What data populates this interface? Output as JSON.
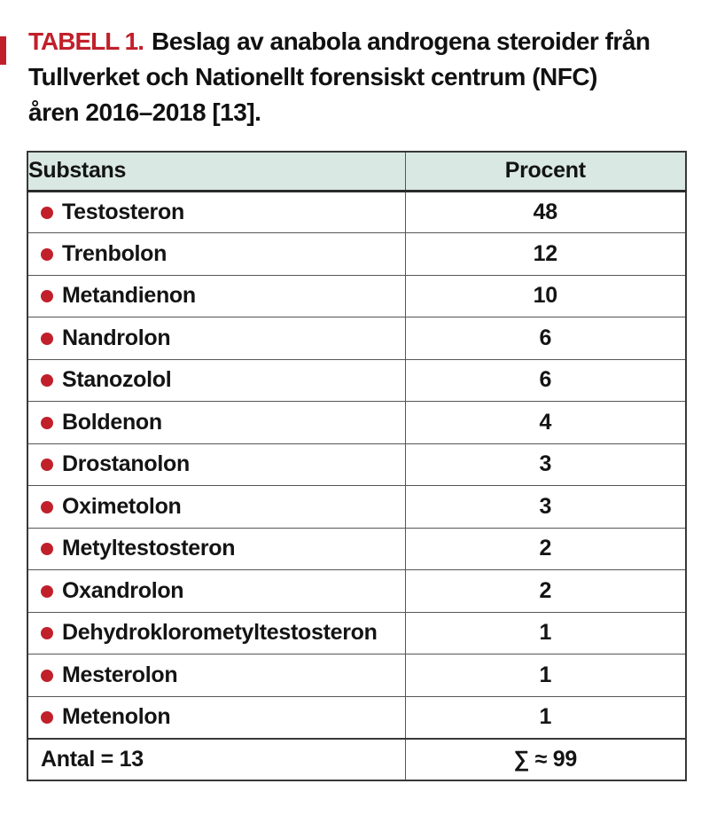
{
  "caption": {
    "label": "TABELL 1.",
    "lines": [
      "Beslag av anabola androgena steroider från",
      "Tullverket och Nationellt forensiskt centrum (NFC)",
      "åren 2016–2018 [13]."
    ],
    "full_text": "TABELL 1. Beslag av anabola androgena steroider från Tullverket och Nationellt forensiskt centrum (NFC) åren 2016–2018 [13]."
  },
  "table": {
    "columns": [
      "Substans",
      "Procent"
    ],
    "rows": [
      {
        "substans": "Testosteron",
        "procent": "48"
      },
      {
        "substans": "Trenbolon",
        "procent": "12"
      },
      {
        "substans": "Metandienon",
        "procent": "10"
      },
      {
        "substans": "Nandrolon",
        "procent": "6"
      },
      {
        "substans": "Stanozolol",
        "procent": "6"
      },
      {
        "substans": "Boldenon",
        "procent": "4"
      },
      {
        "substans": "Drostanolon",
        "procent": "3"
      },
      {
        "substans": "Oximetolon",
        "procent": "3"
      },
      {
        "substans": "Metyltestosteron",
        "procent": "2"
      },
      {
        "substans": "Oxandrolon",
        "procent": "2"
      },
      {
        "substans": "Dehydroklorometyltestosteron",
        "procent": "1"
      },
      {
        "substans": "Mesterolon",
        "procent": "1"
      },
      {
        "substans": "Metenolon",
        "procent": "1"
      }
    ],
    "footer": {
      "substans": "Antal = 13",
      "procent": "∑ ≈ 99"
    }
  },
  "colors": {
    "accent_red": "#c1202b",
    "header_bg": "#d9e8e3",
    "border_dark": "#383838",
    "border_mid": "#565656"
  }
}
